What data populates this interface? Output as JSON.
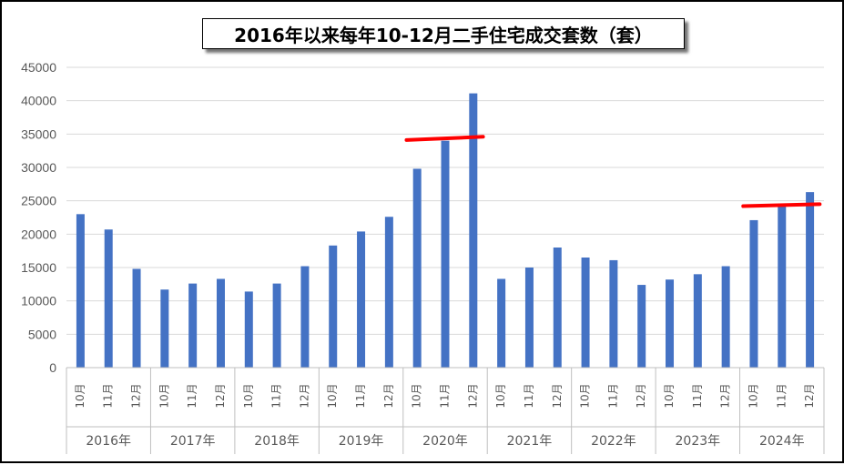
{
  "chart_data": {
    "type": "bar",
    "title": "2016年以来每年10-12月二手住宅成交套数（套）",
    "xlabel": "",
    "ylabel": "",
    "ylim": [
      0,
      45000
    ],
    "yticks": [
      0,
      5000,
      10000,
      15000,
      20000,
      25000,
      30000,
      35000,
      40000,
      45000
    ],
    "grid": true,
    "legend": "none",
    "bar_color": "#4472C4",
    "highlight_color": "#FF0000",
    "years": [
      "2016年",
      "2017年",
      "2018年",
      "2019年",
      "2020年",
      "2021年",
      "2022年",
      "2023年",
      "2024年"
    ],
    "months": [
      "10月",
      "11月",
      "12月"
    ],
    "series": [
      {
        "values": [
          23000,
          20700,
          14800,
          11700,
          12600,
          13300,
          11400,
          12600,
          15200,
          18300,
          20400,
          22600,
          29800,
          34000,
          41100,
          13300,
          15000,
          18000,
          16500,
          16100,
          12400,
          13200,
          14000,
          15200,
          22100,
          24500,
          26300
        ]
      }
    ],
    "annotations": [
      {
        "type": "line",
        "year": "2020年",
        "y_start": 34100,
        "y_end": 34600
      },
      {
        "type": "line",
        "year": "2024年",
        "y_start": 24200,
        "y_end": 24500
      }
    ]
  }
}
